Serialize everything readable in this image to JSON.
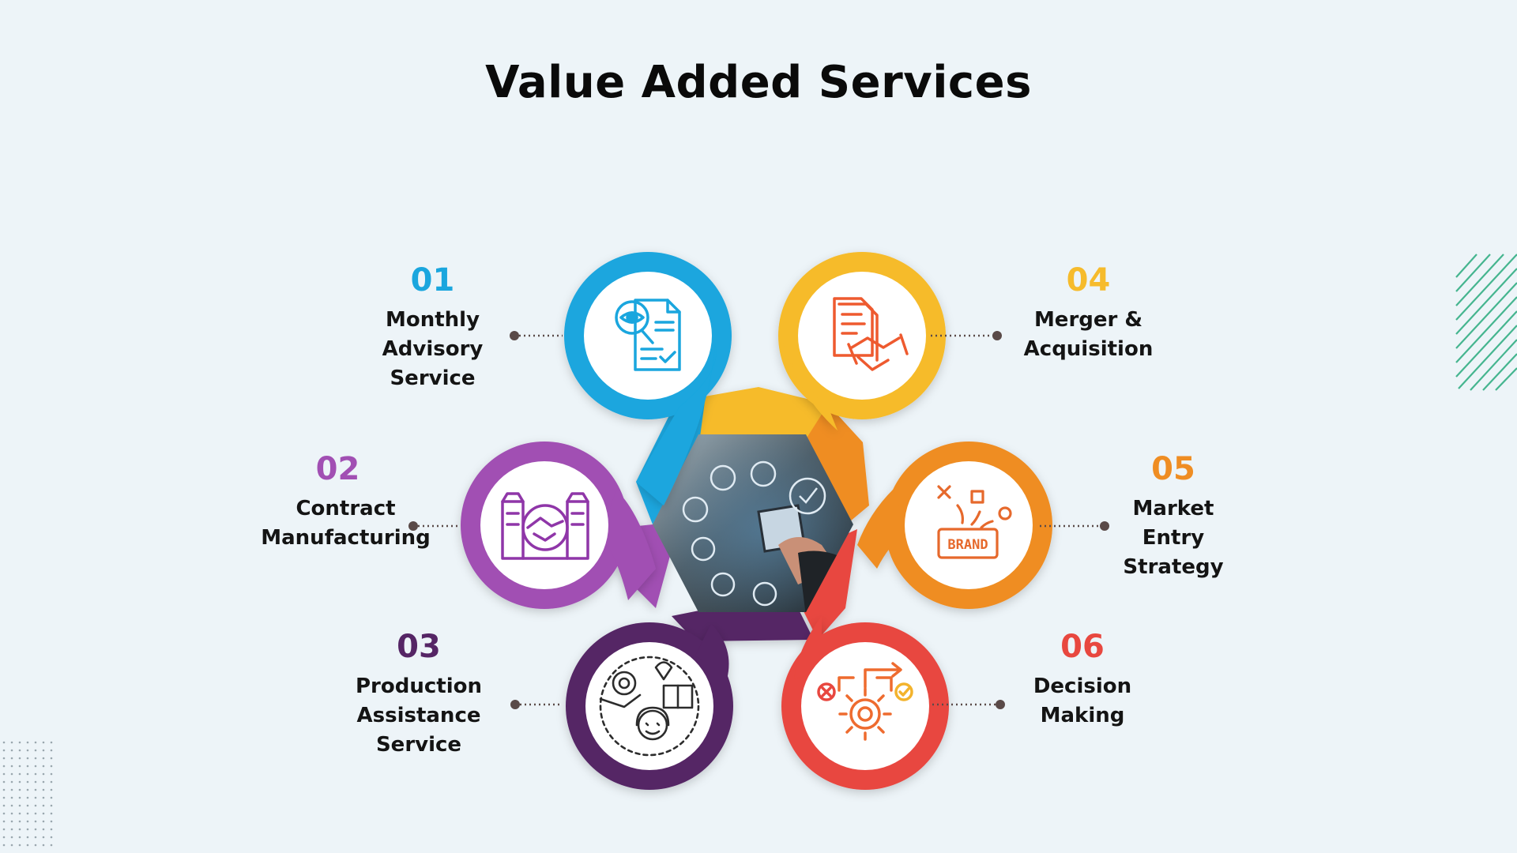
{
  "title": "Value Added Services",
  "colors": {
    "s01": "#1aa6de",
    "s02": "#a14fb3",
    "s03": "#552565",
    "s04": "#f6bb2c",
    "s05": "#ef8d23",
    "s06": "#e8473f",
    "background": "#edf4f8",
    "stripes": "#45b58f"
  },
  "services": [
    {
      "number": "01",
      "lines": [
        "Monthly",
        "Advisory",
        "Service"
      ],
      "icon": "document-review-icon"
    },
    {
      "number": "02",
      "lines": [
        "Contract",
        "Manufacturing"
      ],
      "icon": "factory-handshake-icon"
    },
    {
      "number": "03",
      "lines": [
        "Production",
        "Assistance",
        "Service"
      ],
      "icon": "production-support-icon"
    },
    {
      "number": "04",
      "lines": [
        "Merger &",
        "Acquisition"
      ],
      "icon": "agreement-handshake-icon"
    },
    {
      "number": "05",
      "lines": [
        "Market",
        "Entry",
        "Strategy"
      ],
      "icon": "brand-strategy-icon"
    },
    {
      "number": "06",
      "lines": [
        "Decision",
        "Making"
      ],
      "icon": "decision-gear-icon"
    }
  ],
  "center_image": {
    "icon": "tablet-business-icons-photo",
    "brand_text": "BRAND"
  }
}
